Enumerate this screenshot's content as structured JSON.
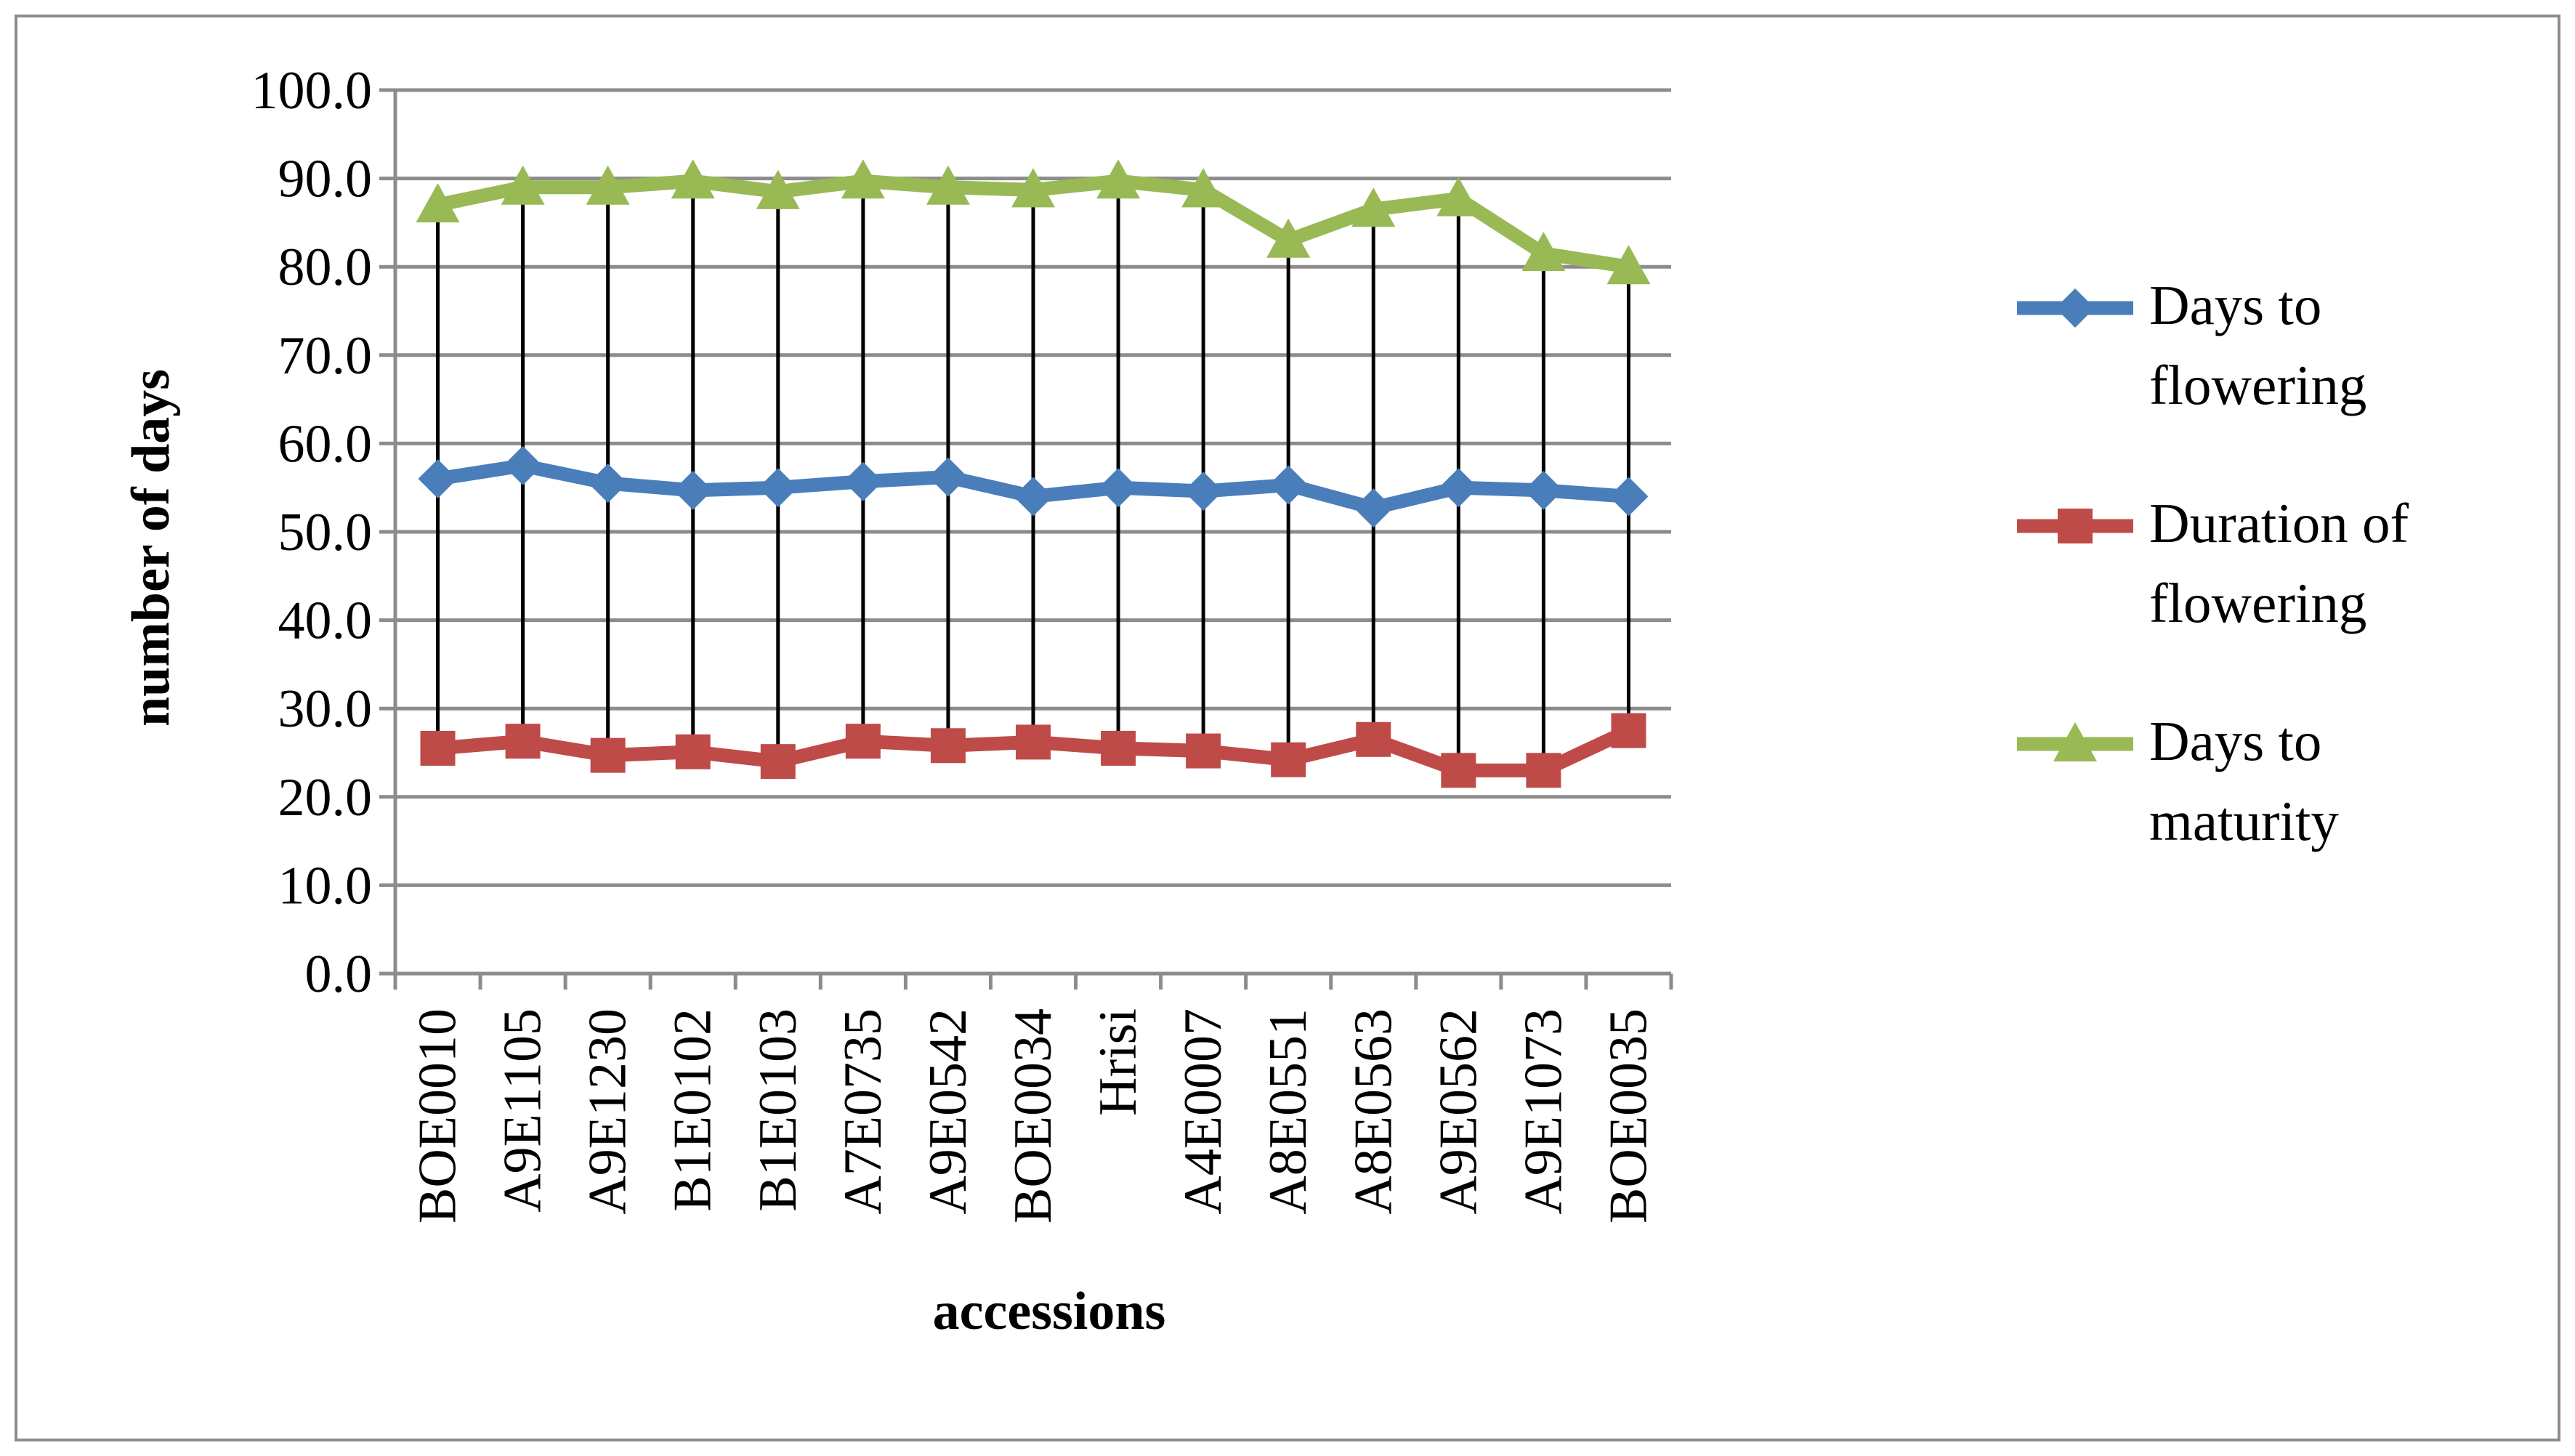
{
  "chart_data": {
    "type": "line",
    "title": "",
    "xlabel": "accessions",
    "ylabel": "number of days",
    "ylim": [
      0,
      100
    ],
    "ytick_step": 10,
    "ytick_labels": [
      "0.0",
      "10.0",
      "20.0",
      "30.0",
      "40.0",
      "50.0",
      "60.0",
      "70.0",
      "80.0",
      "90.0",
      "100.0"
    ],
    "grid": true,
    "legend_position": "right",
    "high_low_lines": true,
    "categories": [
      "BOE0010",
      "A9E1105",
      "A9E1230",
      "B1E0102",
      "B1E0103",
      "A7E0735",
      "A9E0542",
      "BOE0034",
      "Hrisi",
      "A4E0007",
      "A8E0551",
      "A8E0563",
      "A9E0562",
      "A9E1073",
      "BOE0035"
    ],
    "series": [
      {
        "name": "Days to flowering",
        "color": "#4a7ebb",
        "marker": "diamond",
        "values": [
          56.0,
          57.5,
          55.5,
          54.7,
          55.0,
          55.7,
          56.2,
          54.0,
          55.0,
          54.6,
          55.3,
          52.7,
          55.0,
          54.7,
          54.0
        ]
      },
      {
        "name": "Duration of flowering",
        "color": "#be4b48",
        "marker": "square",
        "values": [
          25.5,
          26.3,
          24.7,
          25.1,
          24.0,
          26.3,
          25.8,
          26.2,
          25.5,
          25.2,
          24.2,
          26.5,
          23.0,
          23.0,
          27.5
        ]
      },
      {
        "name": "Days to maturity",
        "color": "#98b954",
        "marker": "triangle",
        "values": [
          87.0,
          89.0,
          89.0,
          89.7,
          88.5,
          89.7,
          89.0,
          88.7,
          89.7,
          88.7,
          83.0,
          86.5,
          87.7,
          81.5,
          80.0
        ]
      }
    ]
  }
}
